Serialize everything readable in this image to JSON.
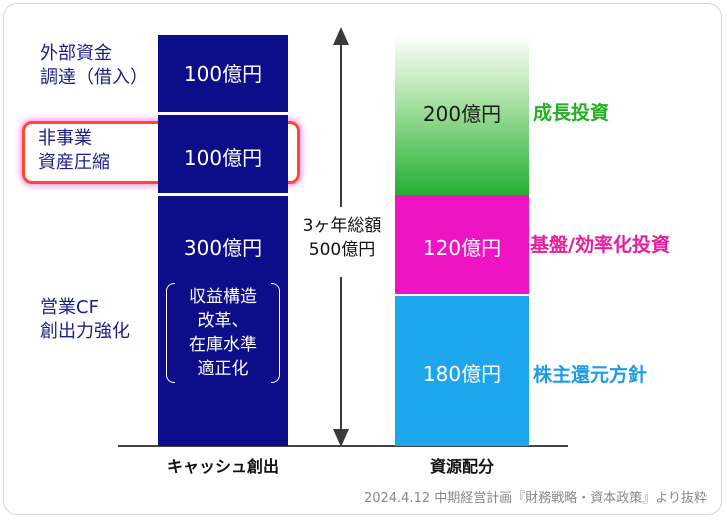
{
  "left_labels": {
    "external": [
      "外部資金",
      "調達（借入）"
    ],
    "nonbusiness": [
      "非事業",
      "資産圧縮"
    ],
    "operating": [
      "営業CF",
      "創出力強化"
    ]
  },
  "cash_bar": {
    "segments": [
      {
        "label": "100億円",
        "value": 100
      },
      {
        "label": "100億円",
        "value": 100
      },
      {
        "label": "300億円",
        "value": 300
      }
    ],
    "note": [
      "収益構造",
      "改革、",
      "在庫水準",
      "適正化"
    ],
    "title": "キャッシュ創出"
  },
  "total": {
    "line1": "3ヶ年総額",
    "line2": "500億円"
  },
  "alloc_bar": {
    "segments": [
      {
        "label": "200億円",
        "value": 200,
        "category": "成長投資",
        "color": "#22b022"
      },
      {
        "label": "120億円",
        "value": 120,
        "category": "基盤/効率化投資",
        "color": "#e61e9e"
      },
      {
        "label": "180億円",
        "value": 180,
        "category": "株主還元方針",
        "color": "#1e9be6"
      }
    ],
    "title": "資源配分"
  },
  "colors": {
    "navy": "#0d0d8a",
    "magenta": "#ee14c4",
    "sky": "#1ea6ec",
    "highlight": "#ff4a2a"
  },
  "source": "2024.4.12 中期経営計画『財務戦略・資本政策』より抜粋"
}
